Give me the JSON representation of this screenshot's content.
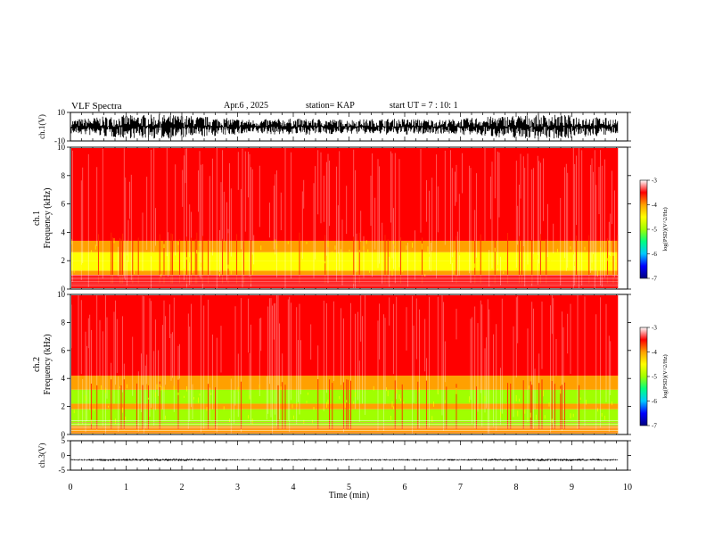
{
  "header": {
    "title": "VLF Spectra",
    "date": "Apr.6 , 2025",
    "station": "station= KAP",
    "start": "start UT = 7 : 10: 1"
  },
  "chart_data": [
    {
      "type": "line",
      "name": "ch1-waveform",
      "ylabel": "ch.1(V)",
      "ylim": [
        -10,
        10
      ],
      "yticks": [
        "10",
        "-10"
      ],
      "xlim": [
        0,
        10
      ],
      "x_end": 9.83
    },
    {
      "type": "heatmap",
      "name": "ch1-spectrogram",
      "ylabel": "ch.1 Frequency (kHz)",
      "ylim": [
        0,
        10
      ],
      "yticks": [
        "0",
        "2",
        "4",
        "6",
        "8",
        "10"
      ],
      "xlim": [
        0,
        10
      ],
      "x_end": 9.83,
      "colorbar": {
        "label": "log(PSD)(V^2/Hz)",
        "range": [
          -7,
          -3
        ],
        "ticks": [
          "-3",
          "-4",
          "-5",
          "-6",
          "-7"
        ]
      },
      "band_log_psd": [
        {
          "f": [
            0.0,
            1.0
          ],
          "v": -3.3
        },
        {
          "f": [
            1.0,
            1.3
          ],
          "v": -4.1
        },
        {
          "f": [
            1.3,
            2.0
          ],
          "v": -4.6
        },
        {
          "f": [
            2.0,
            2.6
          ],
          "v": -4.3
        },
        {
          "f": [
            2.6,
            3.4
          ],
          "v": -4.0
        },
        {
          "f": [
            3.4,
            10.0
          ],
          "v": -3.4
        }
      ]
    },
    {
      "type": "heatmap",
      "name": "ch2-spectrogram",
      "ylabel": "ch.2 Frequency (kHz)",
      "ylim": [
        0,
        10
      ],
      "yticks": [
        "0",
        "2",
        "4",
        "6",
        "8",
        "10"
      ],
      "xlim": [
        0,
        10
      ],
      "x_end": 9.83,
      "colorbar": {
        "label": "log(PSD)(V^2/Hz)",
        "range": [
          -7,
          -3
        ],
        "ticks": [
          "-3",
          "-4",
          "-5",
          "-6",
          "-7"
        ]
      },
      "band_log_psd": [
        {
          "f": [
            0.0,
            0.6
          ],
          "v": -4.0
        },
        {
          "f": [
            0.6,
            1.8
          ],
          "v": -4.9
        },
        {
          "f": [
            1.8,
            2.2
          ],
          "v": -4.2
        },
        {
          "f": [
            2.2,
            3.2
          ],
          "v": -4.9
        },
        {
          "f": [
            3.2,
            4.2
          ],
          "v": -3.8
        },
        {
          "f": [
            4.2,
            10.0
          ],
          "v": -3.3
        }
      ]
    },
    {
      "type": "line",
      "name": "ch3-waveform",
      "ylabel": "ch.3(V)",
      "ylim": [
        -5,
        5
      ],
      "yticks": [
        "5",
        "0",
        "-5"
      ],
      "xlim": [
        0,
        10
      ],
      "x_end": 9.83,
      "baseline": -1.5
    }
  ],
  "xaxis": {
    "label": "Time (min)",
    "ticks": [
      "0",
      "1",
      "2",
      "3",
      "4",
      "5",
      "6",
      "7",
      "8",
      "9",
      "10"
    ]
  },
  "colors": {
    "axis": "#000000",
    "trace": "#000000",
    "colormap": [
      "#000080",
      "#0000ff",
      "#00c8ff",
      "#00ff80",
      "#a0ff00",
      "#ffff00",
      "#ffa000",
      "#ff0000",
      "#ffffff"
    ]
  }
}
